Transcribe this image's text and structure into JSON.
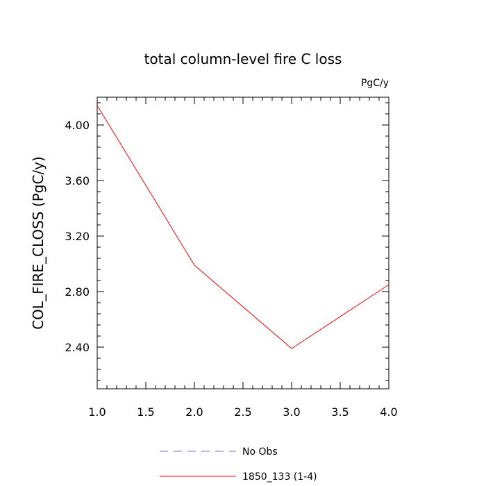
{
  "chart_data": {
    "type": "line",
    "title": "total column-level fire C loss",
    "units_label": "PgC/y",
    "ylabel": "COL_FIRE_CLOSS  (PgC/y)",
    "xlabel": "",
    "xlim": [
      1.0,
      4.0
    ],
    "ylim": [
      2.1,
      4.2
    ],
    "x_ticks": [
      1.0,
      1.5,
      2.0,
      2.5,
      3.0,
      3.5,
      4.0
    ],
    "x_tick_labels": [
      "1.0",
      "1.5",
      "2.0",
      "2.5",
      "3.0",
      "3.5",
      "4.0"
    ],
    "y_ticks": [
      2.4,
      2.8,
      3.2,
      3.6,
      4.0
    ],
    "y_tick_labels": [
      "2.40",
      "2.80",
      "3.20",
      "3.60",
      "4.00"
    ],
    "grid": false,
    "legend_position": "bottom-center",
    "series": [
      {
        "name": "No Obs",
        "color": "#7070e0",
        "dash": "dashed",
        "x": [],
        "y": []
      },
      {
        "name": "1850_133 (1-4)",
        "color": "#ff0000",
        "dash": "solid",
        "x": [
          1,
          2,
          3,
          4
        ],
        "y": [
          4.14,
          2.99,
          2.39,
          2.85
        ]
      }
    ]
  }
}
